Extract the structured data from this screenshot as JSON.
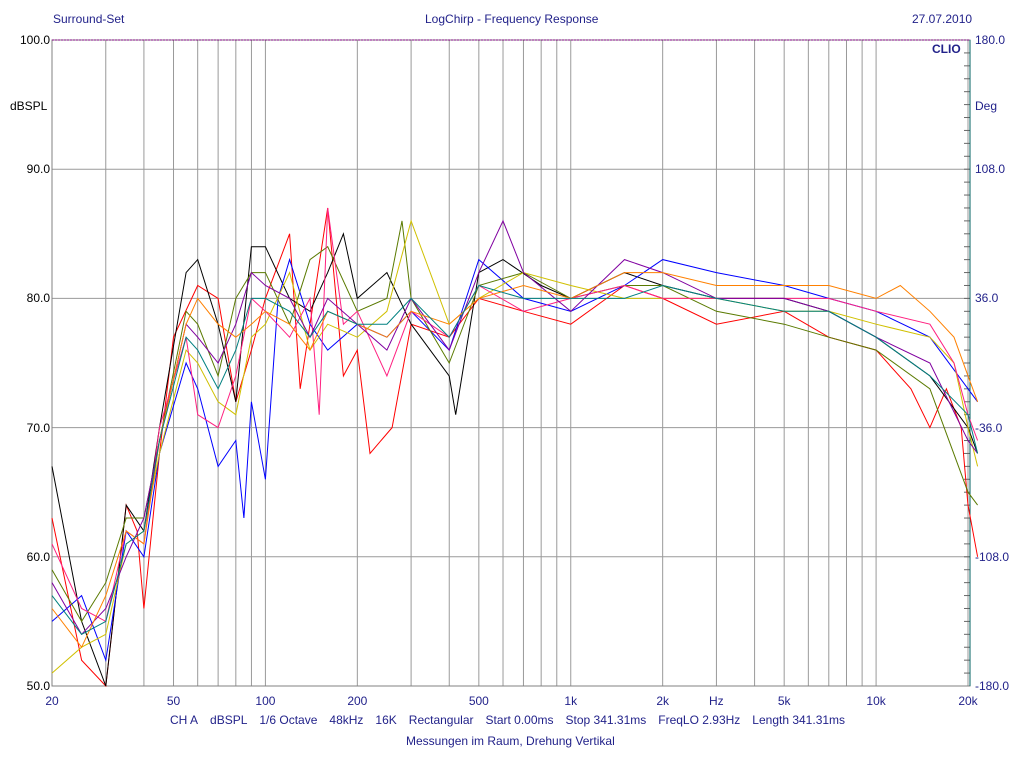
{
  "header": {
    "left": "Surround-Set",
    "center": "LogChirp - Frequency Response",
    "right": "27.07.2010"
  },
  "footer": {
    "settings": [
      "CH A",
      "dBSPL",
      "1/6 Octave",
      "48kHz",
      "16K",
      "Rectangular",
      "Start 0.00ms",
      "Stop 341.31ms",
      "FreqLO 2.93Hz",
      "Length 341.31ms"
    ],
    "caption": "Messungen im Raum, Drehung Vertikal"
  },
  "chart_data": {
    "type": "line",
    "title": "LogChirp - Frequency Response",
    "brand": "CLIO",
    "xlabel": "Hz",
    "ylabel": "dBSPL",
    "y2label": "Deg",
    "xscale": "log",
    "xlim": [
      20,
      22000
    ],
    "ylim": [
      50,
      100
    ],
    "y2lim": [
      -180,
      180
    ],
    "grid": true,
    "x_ticks": [
      {
        "v": 20,
        "l": "20"
      },
      {
        "v": 50,
        "l": "50"
      },
      {
        "v": 100,
        "l": "100"
      },
      {
        "v": 200,
        "l": "200"
      },
      {
        "v": 500,
        "l": "500"
      },
      {
        "v": 1000,
        "l": "1k"
      },
      {
        "v": 2000,
        "l": "2k"
      },
      {
        "v": 5000,
        "l": "5k"
      },
      {
        "v": 10000,
        "l": "10k"
      },
      {
        "v": 20000,
        "l": "20k"
      }
    ],
    "y_ticks": [
      "50.0",
      "60.0",
      "70.0",
      "80.0",
      "90.0",
      "100.0"
    ],
    "y2_ticks": [
      "-180.0",
      "-108.0",
      "-36.0",
      "36.0",
      "108.0",
      "180.0"
    ],
    "series": [
      {
        "name": "red",
        "color": "#ff0000",
        "points": [
          [
            20,
            63
          ],
          [
            25,
            52
          ],
          [
            30,
            50
          ],
          [
            35,
            64
          ],
          [
            38,
            62
          ],
          [
            40,
            56
          ],
          [
            45,
            68
          ],
          [
            50,
            77
          ],
          [
            60,
            81
          ],
          [
            70,
            80
          ],
          [
            80,
            72
          ],
          [
            90,
            76
          ],
          [
            100,
            80
          ],
          [
            120,
            85
          ],
          [
            130,
            73
          ],
          [
            160,
            87
          ],
          [
            180,
            74
          ],
          [
            200,
            76
          ],
          [
            220,
            68
          ],
          [
            260,
            70
          ],
          [
            300,
            78
          ],
          [
            400,
            77
          ],
          [
            500,
            80
          ],
          [
            700,
            79
          ],
          [
            1000,
            78
          ],
          [
            1500,
            81
          ],
          [
            2000,
            80
          ],
          [
            3000,
            78
          ],
          [
            5000,
            79
          ],
          [
            7000,
            77
          ],
          [
            10000,
            76
          ],
          [
            13000,
            73
          ],
          [
            15000,
            70
          ],
          [
            17000,
            73
          ],
          [
            19000,
            70
          ],
          [
            20000,
            64
          ],
          [
            22000,
            60
          ]
        ]
      },
      {
        "name": "black",
        "color": "#000000",
        "points": [
          [
            20,
            67
          ],
          [
            25,
            55
          ],
          [
            30,
            50
          ],
          [
            35,
            64
          ],
          [
            40,
            62
          ],
          [
            45,
            70
          ],
          [
            55,
            82
          ],
          [
            60,
            83
          ],
          [
            70,
            78
          ],
          [
            80,
            72
          ],
          [
            90,
            84
          ],
          [
            100,
            84
          ],
          [
            120,
            80
          ],
          [
            140,
            79
          ],
          [
            160,
            82
          ],
          [
            180,
            85
          ],
          [
            200,
            80
          ],
          [
            250,
            82
          ],
          [
            300,
            78
          ],
          [
            400,
            74
          ],
          [
            420,
            71
          ],
          [
            500,
            82
          ],
          [
            600,
            83
          ],
          [
            800,
            81
          ],
          [
            1000,
            80
          ],
          [
            1500,
            82
          ],
          [
            2000,
            81
          ],
          [
            3000,
            80
          ],
          [
            5000,
            80
          ],
          [
            7000,
            79
          ],
          [
            10000,
            77
          ],
          [
            15000,
            74
          ],
          [
            20000,
            70
          ],
          [
            22000,
            68
          ]
        ]
      },
      {
        "name": "blue",
        "color": "#0000ff",
        "points": [
          [
            20,
            55
          ],
          [
            25,
            57
          ],
          [
            30,
            52
          ],
          [
            35,
            62
          ],
          [
            40,
            60
          ],
          [
            45,
            68
          ],
          [
            55,
            75
          ],
          [
            60,
            73
          ],
          [
            70,
            67
          ],
          [
            80,
            69
          ],
          [
            85,
            63
          ],
          [
            90,
            72
          ],
          [
            100,
            66
          ],
          [
            110,
            80
          ],
          [
            120,
            83
          ],
          [
            140,
            78
          ],
          [
            160,
            76
          ],
          [
            200,
            78
          ],
          [
            250,
            77
          ],
          [
            300,
            79
          ],
          [
            400,
            76
          ],
          [
            500,
            83
          ],
          [
            700,
            80
          ],
          [
            1000,
            79
          ],
          [
            1500,
            81
          ],
          [
            2000,
            83
          ],
          [
            3000,
            82
          ],
          [
            5000,
            81
          ],
          [
            7000,
            80
          ],
          [
            10000,
            79
          ],
          [
            15000,
            77
          ],
          [
            20000,
            73
          ],
          [
            22000,
            72
          ]
        ]
      },
      {
        "name": "olive",
        "color": "#5a7a00",
        "points": [
          [
            20,
            59
          ],
          [
            25,
            55
          ],
          [
            30,
            58
          ],
          [
            35,
            63
          ],
          [
            40,
            63
          ],
          [
            45,
            69
          ],
          [
            55,
            79
          ],
          [
            60,
            78
          ],
          [
            70,
            74
          ],
          [
            80,
            80
          ],
          [
            90,
            82
          ],
          [
            100,
            82
          ],
          [
            120,
            78
          ],
          [
            140,
            83
          ],
          [
            160,
            84
          ],
          [
            200,
            79
          ],
          [
            250,
            80
          ],
          [
            280,
            86
          ],
          [
            300,
            80
          ],
          [
            400,
            75
          ],
          [
            500,
            81
          ],
          [
            700,
            82
          ],
          [
            1000,
            80
          ],
          [
            1500,
            81
          ],
          [
            2000,
            81
          ],
          [
            3000,
            79
          ],
          [
            5000,
            78
          ],
          [
            7000,
            77
          ],
          [
            10000,
            76
          ],
          [
            15000,
            73
          ],
          [
            20000,
            65
          ],
          [
            22000,
            64
          ]
        ]
      },
      {
        "name": "yellow",
        "color": "#d0c000",
        "points": [
          [
            20,
            51
          ],
          [
            25,
            53
          ],
          [
            30,
            54
          ],
          [
            35,
            61
          ],
          [
            40,
            62
          ],
          [
            45,
            68
          ],
          [
            55,
            76
          ],
          [
            60,
            75
          ],
          [
            70,
            72
          ],
          [
            80,
            71
          ],
          [
            90,
            77
          ],
          [
            100,
            78
          ],
          [
            120,
            82
          ],
          [
            140,
            76
          ],
          [
            160,
            78
          ],
          [
            200,
            77
          ],
          [
            250,
            79
          ],
          [
            300,
            86
          ],
          [
            400,
            78
          ],
          [
            500,
            80
          ],
          [
            700,
            82
          ],
          [
            1000,
            81
          ],
          [
            1500,
            80
          ],
          [
            2000,
            80
          ],
          [
            3000,
            80
          ],
          [
            5000,
            79
          ],
          [
            7000,
            79
          ],
          [
            10000,
            78
          ],
          [
            15000,
            77
          ],
          [
            18000,
            75
          ],
          [
            20000,
            70
          ],
          [
            22000,
            67
          ]
        ]
      },
      {
        "name": "magenta",
        "color": "#ff2080",
        "points": [
          [
            20,
            61
          ],
          [
            25,
            56
          ],
          [
            30,
            55
          ],
          [
            35,
            62
          ],
          [
            40,
            61
          ],
          [
            45,
            70
          ],
          [
            55,
            77
          ],
          [
            60,
            71
          ],
          [
            70,
            70
          ],
          [
            80,
            74
          ],
          [
            90,
            80
          ],
          [
            100,
            79
          ],
          [
            120,
            77
          ],
          [
            140,
            80
          ],
          [
            150,
            71
          ],
          [
            160,
            87
          ],
          [
            180,
            78
          ],
          [
            200,
            79
          ],
          [
            250,
            74
          ],
          [
            300,
            79
          ],
          [
            400,
            77
          ],
          [
            500,
            81
          ],
          [
            700,
            79
          ],
          [
            1000,
            80
          ],
          [
            1500,
            81
          ],
          [
            2000,
            80
          ],
          [
            3000,
            80
          ],
          [
            5000,
            80
          ],
          [
            7000,
            80
          ],
          [
            10000,
            79
          ],
          [
            15000,
            78
          ],
          [
            18000,
            75
          ],
          [
            20000,
            71
          ],
          [
            22000,
            69
          ]
        ]
      },
      {
        "name": "purple",
        "color": "#8000a0",
        "points": [
          [
            20,
            58
          ],
          [
            25,
            54
          ],
          [
            30,
            56
          ],
          [
            35,
            60
          ],
          [
            40,
            63
          ],
          [
            45,
            69
          ],
          [
            55,
            78
          ],
          [
            60,
            77
          ],
          [
            70,
            75
          ],
          [
            80,
            78
          ],
          [
            90,
            82
          ],
          [
            100,
            81
          ],
          [
            120,
            80
          ],
          [
            140,
            77
          ],
          [
            160,
            80
          ],
          [
            200,
            78
          ],
          [
            250,
            76
          ],
          [
            300,
            80
          ],
          [
            400,
            76
          ],
          [
            500,
            82
          ],
          [
            600,
            86
          ],
          [
            700,
            82
          ],
          [
            1000,
            79
          ],
          [
            1500,
            83
          ],
          [
            2000,
            82
          ],
          [
            3000,
            80
          ],
          [
            5000,
            80
          ],
          [
            7000,
            79
          ],
          [
            10000,
            77
          ],
          [
            15000,
            75
          ],
          [
            20000,
            69
          ],
          [
            22000,
            68
          ]
        ]
      },
      {
        "name": "orange",
        "color": "#ff8000",
        "points": [
          [
            20,
            56
          ],
          [
            25,
            53
          ],
          [
            30,
            57
          ],
          [
            35,
            62
          ],
          [
            40,
            61
          ],
          [
            45,
            69
          ],
          [
            55,
            78
          ],
          [
            60,
            80
          ],
          [
            70,
            78
          ],
          [
            80,
            77
          ],
          [
            90,
            78
          ],
          [
            100,
            79
          ],
          [
            120,
            78
          ],
          [
            140,
            76
          ],
          [
            160,
            79
          ],
          [
            200,
            78
          ],
          [
            250,
            77
          ],
          [
            300,
            79
          ],
          [
            400,
            78
          ],
          [
            500,
            80
          ],
          [
            700,
            81
          ],
          [
            1000,
            80
          ],
          [
            1500,
            82
          ],
          [
            2000,
            82
          ],
          [
            3000,
            81
          ],
          [
            5000,
            81
          ],
          [
            7000,
            81
          ],
          [
            10000,
            80
          ],
          [
            12000,
            81
          ],
          [
            15000,
            79
          ],
          [
            18000,
            77
          ],
          [
            20000,
            74
          ],
          [
            22000,
            72
          ]
        ]
      },
      {
        "name": "teal",
        "color": "#008080",
        "points": [
          [
            20,
            57
          ],
          [
            25,
            54
          ],
          [
            30,
            55
          ],
          [
            35,
            61
          ],
          [
            40,
            62
          ],
          [
            45,
            69
          ],
          [
            55,
            77
          ],
          [
            60,
            76
          ],
          [
            70,
            73
          ],
          [
            80,
            76
          ],
          [
            90,
            80
          ],
          [
            100,
            80
          ],
          [
            120,
            79
          ],
          [
            140,
            77
          ],
          [
            160,
            79
          ],
          [
            200,
            78
          ],
          [
            250,
            78
          ],
          [
            300,
            80
          ],
          [
            400,
            77
          ],
          [
            500,
            81
          ],
          [
            700,
            80
          ],
          [
            1000,
            80
          ],
          [
            1500,
            80
          ],
          [
            2000,
            81
          ],
          [
            3000,
            80
          ],
          [
            5000,
            79
          ],
          [
            7000,
            79
          ],
          [
            10000,
            77
          ],
          [
            15000,
            74
          ],
          [
            20000,
            71
          ],
          [
            22000,
            68
          ]
        ]
      }
    ]
  }
}
